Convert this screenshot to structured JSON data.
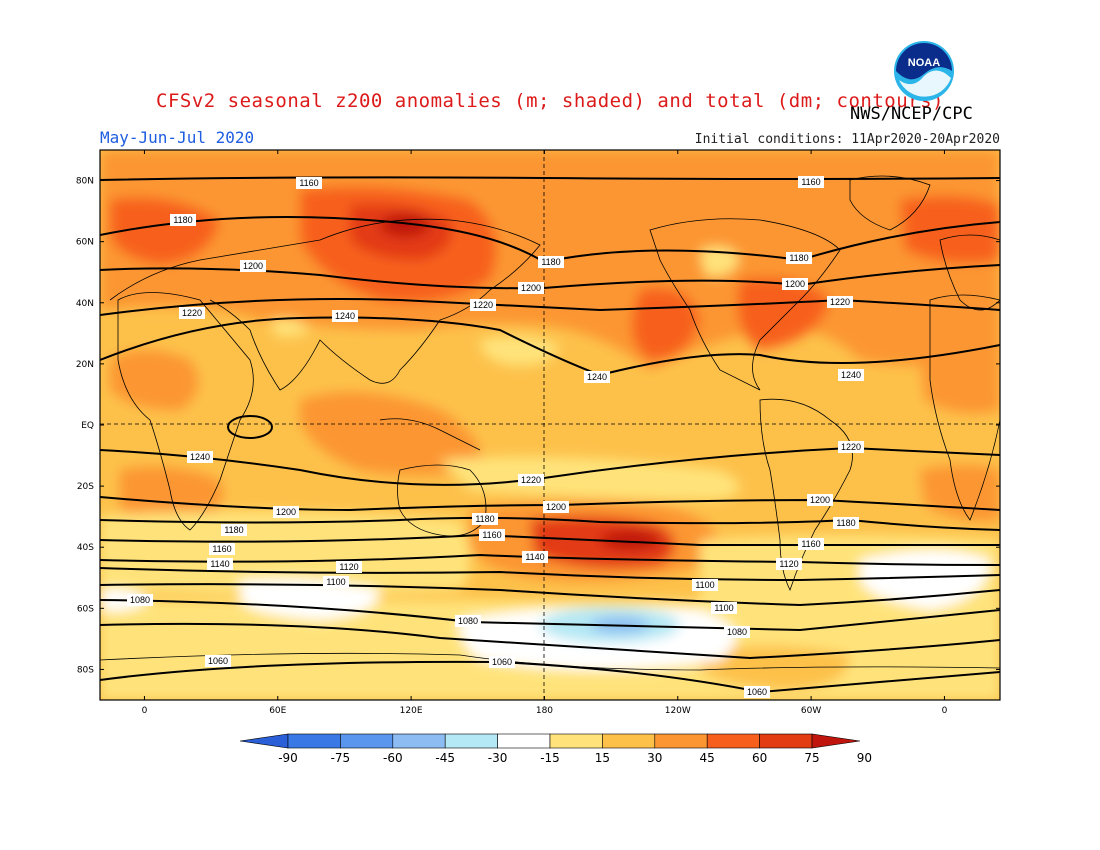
{
  "header": {
    "title": "CFSv2 seasonal z200 anomalies (m; shaded) and total (dm; contours)",
    "season": "May-Jun-Jul 2020",
    "agency": "NWS/NCEP/CPC",
    "initial_conditions": "Initial conditions: 11Apr2020-20Apr2020",
    "logo_text": "NOAA"
  },
  "map": {
    "lat_labels": [
      "80N",
      "60N",
      "40N",
      "20N",
      "EQ",
      "20S",
      "40S",
      "60S",
      "80S"
    ],
    "lon_labels": [
      "0",
      "60E",
      "120E",
      "180",
      "120W",
      "60W",
      "0"
    ],
    "contour_labels": [
      "1160",
      "1160",
      "1180",
      "1180",
      "1180",
      "1200",
      "1200",
      "1200",
      "1220",
      "1220",
      "1220",
      "1240",
      "1240",
      "1240",
      "1240",
      "1220",
      "1220",
      "1200",
      "1200",
      "1200",
      "1180",
      "1180",
      "1180",
      "1160",
      "1160",
      "1160",
      "1140",
      "1140",
      "1120",
      "1120",
      "1100",
      "1100",
      "1100",
      "1080",
      "1080",
      "1080",
      "1060",
      "1060",
      "1060"
    ],
    "land_color": "#000000",
    "contour_color": "#000000"
  },
  "colorbar": {
    "tick_labels": [
      "-90",
      "-75",
      "-60",
      "-45",
      "-30",
      "-15",
      "15",
      "30",
      "45",
      "60",
      "75",
      "90"
    ],
    "colors": [
      "#2a5fd8",
      "#3a78e6",
      "#5a95ee",
      "#8cbcf2",
      "#b4e8f4",
      "#ffffff",
      "#ffe37a",
      "#fdc14a",
      "#fc9632",
      "#f7601c",
      "#e33b12",
      "#bf150c"
    ]
  }
}
